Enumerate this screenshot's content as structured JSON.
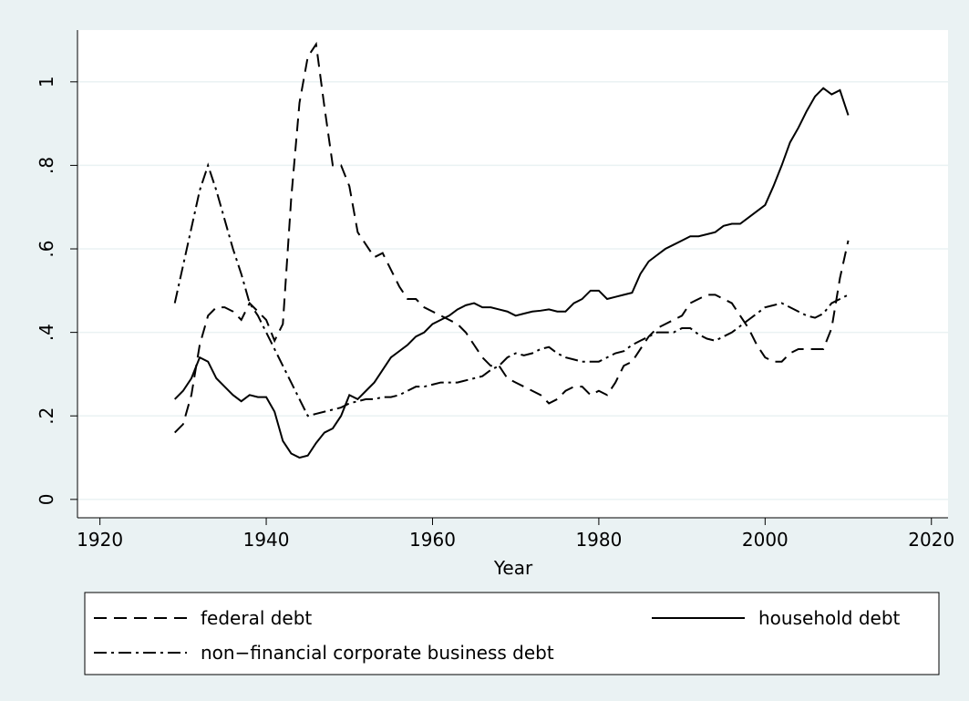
{
  "chart_data": {
    "type": "line",
    "x_label": "Year",
    "x": [
      1929,
      1930,
      1931,
      1932,
      1933,
      1934,
      1935,
      1936,
      1937,
      1938,
      1939,
      1940,
      1941,
      1942,
      1943,
      1944,
      1945,
      1946,
      1947,
      1948,
      1949,
      1950,
      1951,
      1952,
      1953,
      1954,
      1955,
      1956,
      1957,
      1958,
      1959,
      1960,
      1961,
      1962,
      1963,
      1964,
      1965,
      1966,
      1967,
      1968,
      1969,
      1970,
      1971,
      1972,
      1973,
      1974,
      1975,
      1976,
      1977,
      1978,
      1979,
      1980,
      1981,
      1982,
      1983,
      1984,
      1985,
      1986,
      1987,
      1988,
      1989,
      1990,
      1991,
      1992,
      1993,
      1994,
      1995,
      1996,
      1997,
      1998,
      1999,
      2000,
      2001,
      2002,
      2003,
      2004,
      2005,
      2006,
      2007,
      2008,
      2009,
      2010
    ],
    "series": [
      {
        "name": "federal debt",
        "color": "#000000",
        "dash": "dashed",
        "values": [
          0.16,
          0.18,
          0.25,
          0.37,
          0.44,
          0.46,
          0.46,
          0.45,
          0.43,
          0.47,
          0.45,
          0.43,
          0.38,
          0.42,
          0.72,
          0.95,
          1.06,
          1.09,
          0.94,
          0.8,
          0.8,
          0.75,
          0.64,
          0.61,
          0.58,
          0.59,
          0.55,
          0.51,
          0.48,
          0.48,
          0.46,
          0.45,
          0.44,
          0.43,
          0.42,
          0.4,
          0.37,
          0.34,
          0.32,
          0.32,
          0.29,
          0.28,
          0.27,
          0.26,
          0.25,
          0.23,
          0.24,
          0.26,
          0.27,
          0.27,
          0.25,
          0.26,
          0.25,
          0.28,
          0.32,
          0.33,
          0.36,
          0.39,
          0.41,
          0.42,
          0.43,
          0.44,
          0.47,
          0.48,
          0.49,
          0.49,
          0.48,
          0.47,
          0.44,
          0.41,
          0.37,
          0.34,
          0.33,
          0.33,
          0.35,
          0.36,
          0.36,
          0.36,
          0.36,
          0.41,
          0.53,
          0.62
        ]
      },
      {
        "name": "household debt",
        "color": "#000000",
        "dash": "solid",
        "values": [
          0.24,
          0.26,
          0.29,
          0.34,
          0.33,
          0.29,
          0.27,
          0.25,
          0.235,
          0.25,
          0.245,
          0.245,
          0.21,
          0.14,
          0.11,
          0.1,
          0.105,
          0.135,
          0.16,
          0.17,
          0.2,
          0.25,
          0.24,
          0.26,
          0.28,
          0.31,
          0.34,
          0.355,
          0.37,
          0.39,
          0.4,
          0.42,
          0.43,
          0.44,
          0.455,
          0.465,
          0.47,
          0.46,
          0.46,
          0.455,
          0.45,
          0.44,
          0.445,
          0.45,
          0.452,
          0.455,
          0.45,
          0.45,
          0.47,
          0.48,
          0.5,
          0.5,
          0.48,
          0.485,
          0.49,
          0.495,
          0.54,
          0.57,
          0.585,
          0.6,
          0.61,
          0.62,
          0.63,
          0.63,
          0.635,
          0.64,
          0.655,
          0.66,
          0.66,
          0.675,
          0.69,
          0.705,
          0.75,
          0.8,
          0.855,
          0.89,
          0.93,
          0.965,
          0.985,
          0.97,
          0.98,
          0.92
        ]
      },
      {
        "name": "non−financial corporate business debt",
        "color": "#000000",
        "dash": "dashdot",
        "values": [
          0.47,
          0.56,
          0.65,
          0.74,
          0.8,
          0.74,
          0.67,
          0.6,
          0.54,
          0.47,
          0.44,
          0.4,
          0.36,
          0.32,
          0.28,
          0.24,
          0.2,
          0.205,
          0.21,
          0.215,
          0.22,
          0.23,
          0.235,
          0.24,
          0.24,
          0.245,
          0.245,
          0.25,
          0.26,
          0.27,
          0.27,
          0.275,
          0.28,
          0.28,
          0.28,
          0.285,
          0.29,
          0.295,
          0.31,
          0.32,
          0.34,
          0.35,
          0.345,
          0.35,
          0.36,
          0.365,
          0.35,
          0.34,
          0.335,
          0.33,
          0.33,
          0.33,
          0.34,
          0.35,
          0.355,
          0.37,
          0.38,
          0.39,
          0.4,
          0.4,
          0.4,
          0.41,
          0.41,
          0.395,
          0.385,
          0.38,
          0.39,
          0.4,
          0.415,
          0.43,
          0.445,
          0.46,
          0.465,
          0.47,
          0.46,
          0.45,
          0.44,
          0.435,
          0.445,
          0.47,
          0.48,
          0.49
        ]
      }
    ],
    "xlim": [
      1917.3,
      2022
    ],
    "xticks": [
      1920,
      1940,
      1960,
      1980,
      2000,
      2020
    ],
    "ylim": [
      -0.044,
      1.124
    ],
    "yticks": [
      0,
      {
        "value": 0.2,
        "label": ".2"
      },
      {
        "value": 0.4,
        "label": ".4"
      },
      {
        "value": 0.6,
        "label": ".6"
      },
      {
        "value": 0.8,
        "label": ".8"
      },
      1
    ],
    "grid": true
  }
}
